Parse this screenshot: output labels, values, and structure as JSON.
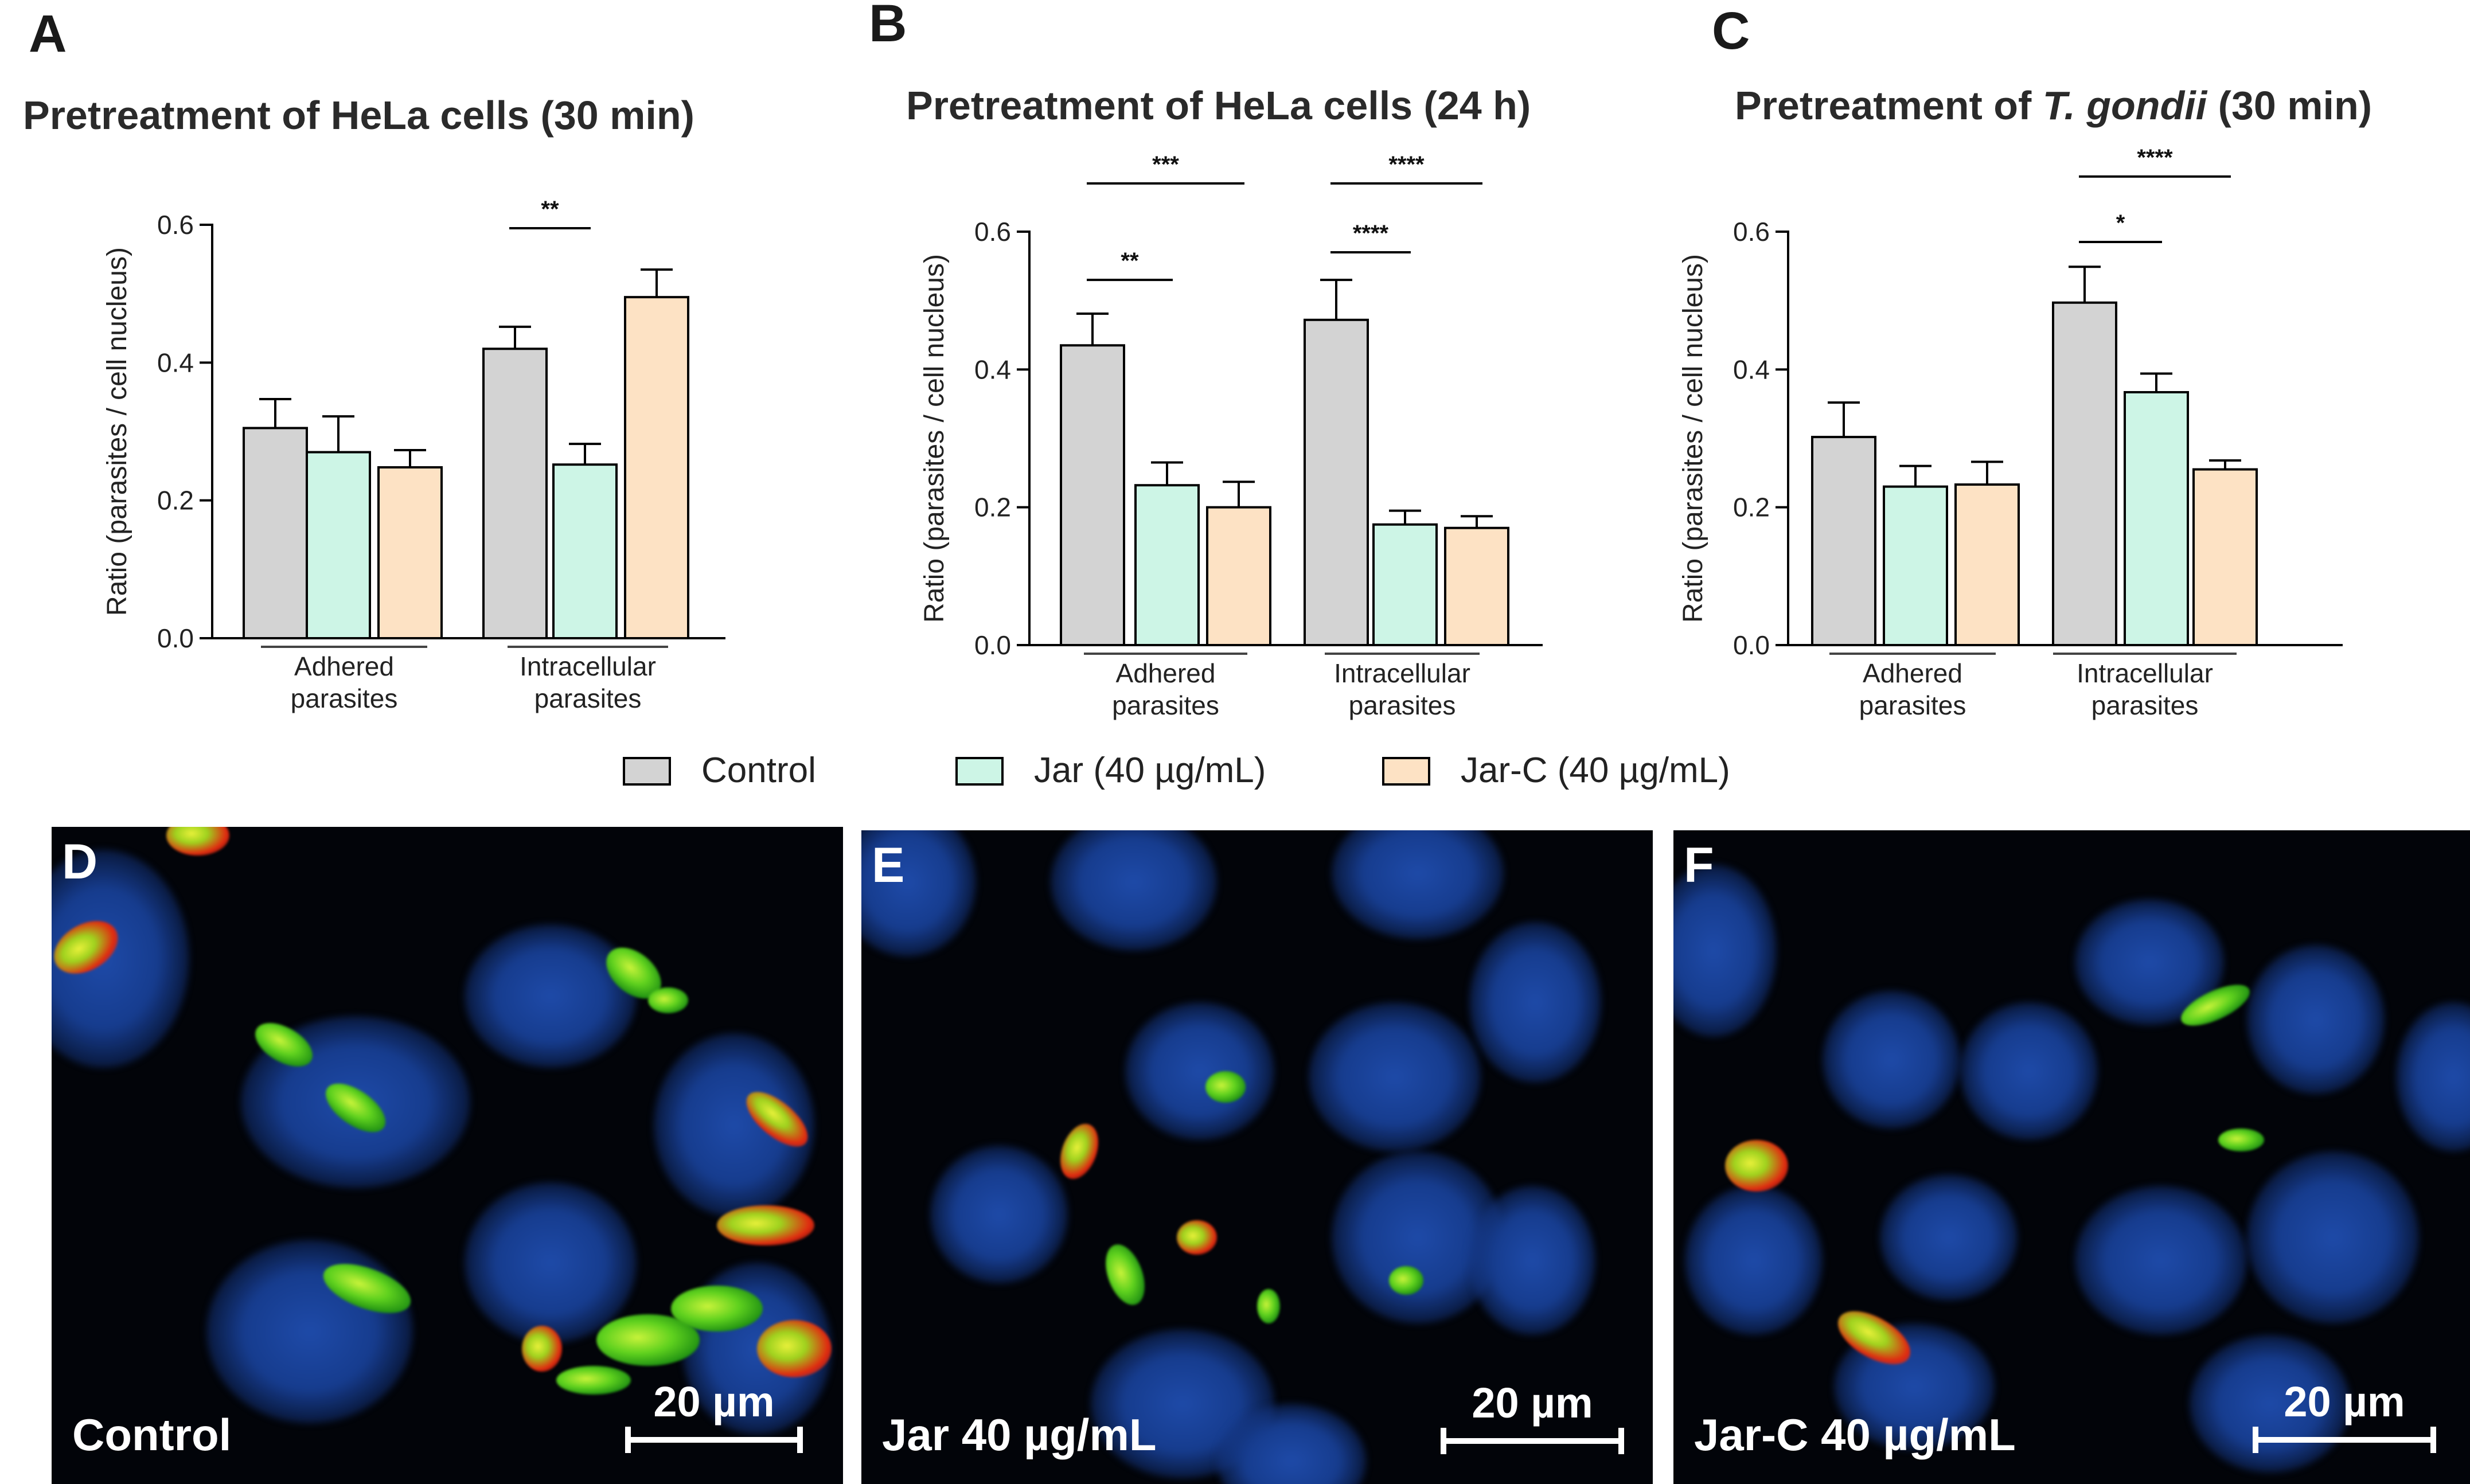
{
  "chart_data": [
    {
      "panel": "A",
      "type": "bar",
      "title": "Pretreatment of HeLa cells (30 min)",
      "ylabel": "Ratio (parasites / cell nucleus)",
      "ylim": [
        0,
        0.6
      ],
      "yticks": [
        "0.0",
        "0.2",
        "0.4",
        "0.6"
      ],
      "categories": [
        "Adhered\nparasites",
        "Intracellular\nparasites"
      ],
      "series": [
        {
          "name": "Control",
          "values": [
            0.305,
            0.42
          ],
          "errors": [
            0.042,
            0.032
          ]
        },
        {
          "name": "Jar (40 µg/mL)",
          "values": [
            0.27,
            0.252
          ],
          "errors": [
            0.052,
            0.03
          ]
        },
        {
          "name": "Jar-C (40 µg/mL)",
          "values": [
            0.248,
            0.495
          ],
          "errors": [
            0.025,
            0.04
          ]
        }
      ],
      "significance": [
        {
          "group": 1,
          "from": 0,
          "to": 1,
          "label": "**",
          "level": 0.595
        }
      ]
    },
    {
      "panel": "B",
      "type": "bar",
      "title": "Pretreatment of HeLa cells (24 h)",
      "ylabel": "Ratio (parasites / cell nucleus)",
      "ylim": [
        0,
        0.6
      ],
      "yticks": [
        "0.0",
        "0.2",
        "0.4",
        "0.6"
      ],
      "categories": [
        "Adhered\nparasites",
        "Intracellular\nparasites"
      ],
      "series": [
        {
          "name": "Control",
          "values": [
            0.435,
            0.472
          ],
          "errors": [
            0.046,
            0.058
          ]
        },
        {
          "name": "Jar (40 µg/mL)",
          "values": [
            0.232,
            0.175
          ],
          "errors": [
            0.033,
            0.02
          ]
        },
        {
          "name": "Jar-C (40 µg/mL)",
          "values": [
            0.2,
            0.17
          ],
          "errors": [
            0.037,
            0.017
          ]
        }
      ],
      "significance": [
        {
          "group": 0,
          "from": 0,
          "to": 1,
          "label": "**",
          "level": 0.53
        },
        {
          "group": 0,
          "from": 0,
          "to": 2,
          "label": "***",
          "level": 0.67
        },
        {
          "group": 1,
          "from": 0,
          "to": 1,
          "label": "****",
          "level": 0.57
        },
        {
          "group": 1,
          "from": 0,
          "to": 2,
          "label": "****",
          "level": 0.67
        }
      ]
    },
    {
      "panel": "C",
      "type": "bar",
      "title": "Pretreatment of ",
      "title_italic": "T. gondii",
      "title_suffix": " (30 min)",
      "ylabel": "Ratio (parasites / cell nucleus)",
      "ylim": [
        0,
        0.6
      ],
      "yticks": [
        "0.0",
        "0.2",
        "0.4",
        "0.6"
      ],
      "categories": [
        "Adhered\nparasites",
        "Intracellular\nparasites"
      ],
      "series": [
        {
          "name": "Control",
          "values": [
            0.302,
            0.497
          ],
          "errors": [
            0.05,
            0.052
          ]
        },
        {
          "name": "Jar (40 µg/mL)",
          "values": [
            0.23,
            0.367
          ],
          "errors": [
            0.03,
            0.027
          ]
        },
        {
          "name": "Jar-C (40 µg/mL)",
          "values": [
            0.233,
            0.255
          ],
          "errors": [
            0.033,
            0.013
          ]
        }
      ],
      "significance": [
        {
          "group": 1,
          "from": 0,
          "to": 1,
          "label": "*",
          "level": 0.585
        },
        {
          "group": 1,
          "from": 0,
          "to": 2,
          "label": "****",
          "level": 0.68
        }
      ]
    }
  ],
  "legend": {
    "placement": "bottom-center",
    "items": [
      {
        "label": "Control",
        "color": "#d3d3d3"
      },
      {
        "label": "Jar (40 µg/mL)",
        "color": "#cdf5e6"
      },
      {
        "label": "Jar-C (40 µg/mL)",
        "color": "#fde2c4"
      }
    ]
  },
  "micrographs": [
    {
      "letter": "D",
      "caption": "Control",
      "scale": "20 µm"
    },
    {
      "letter": "E",
      "caption": "Jar 40 µg/mL",
      "scale": "20 µm"
    },
    {
      "letter": "F",
      "caption": "Jar-C 40 µg/mL",
      "scale": "20 µm"
    }
  ],
  "panel_letters": [
    "A",
    "B",
    "C"
  ],
  "colors": {
    "bar_stroke": "#000000",
    "axis": "#000000"
  }
}
